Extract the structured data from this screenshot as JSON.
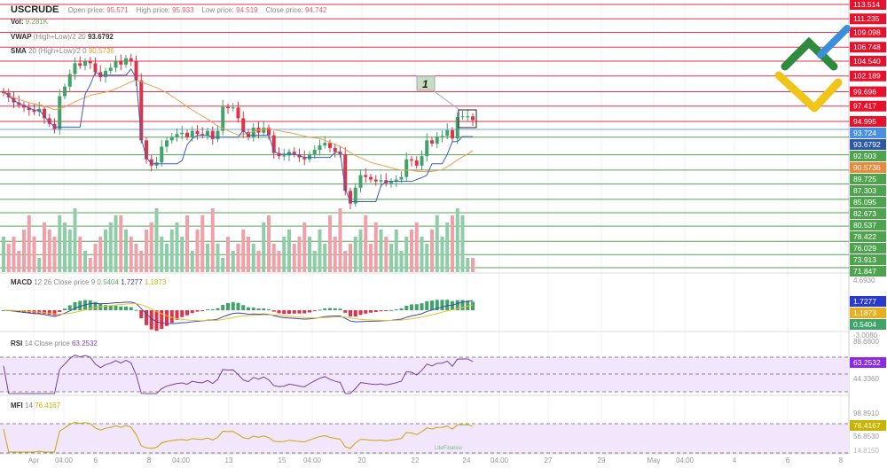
{
  "header": {
    "symbol": "USCRUDE",
    "open_label": "Open price:",
    "open": "95.571",
    "high_label": "High price:",
    "high": "95.933",
    "low_label": "Low price:",
    "low": "94.519",
    "close_label": "Close price:",
    "close": "94.742"
  },
  "legends": {
    "vol": {
      "name": "Vol:",
      "value": "9.281K"
    },
    "vwap": {
      "name": "VWAP",
      "params": "(High+Low)/2 20",
      "value": "93.6792"
    },
    "sma": {
      "name": "SMA",
      "params": "20 (High+Low)/2 0",
      "value": "90.5736"
    },
    "macd": {
      "name": "MACD",
      "params": "12 26 Close price 9",
      "v1": "0.5404",
      "v2": "1.7277",
      "v3": "1.1873"
    },
    "rsi": {
      "name": "RSI",
      "params": "14 Close price",
      "value": "63.2532"
    },
    "mfi": {
      "name": "MFI",
      "params": "14",
      "value": "76.4167"
    }
  },
  "annotation": {
    "label": "1"
  },
  "colors": {
    "up": "#3fa36a",
    "down": "#e0334a",
    "resistance": "#e0334a",
    "support": "#5aa05a",
    "vwap": "#3a5fbf",
    "sma": "#e8a050",
    "rsi": "#7a3fa8",
    "mfi": "#c8a800"
  },
  "chart_data": {
    "type": "candlestick",
    "symbol": "USCRUDE",
    "ylim": [
      71.847,
      113.514
    ],
    "resistance_levels": [
      "113.514",
      "111.235",
      "109.098",
      "106.748",
      "104.540",
      "102.189",
      "99.696",
      "97.417",
      "94.995"
    ],
    "current_level": "93.724",
    "support_levels": [
      "92.503",
      "89.725",
      "87.303",
      "85.095",
      "82.673",
      "80.537",
      "78.422",
      "76.029",
      "73.913",
      "71.847"
    ],
    "vwap_label": "93.6792",
    "sma_label": "90.5736",
    "macd_axis": [
      "4.6930",
      "1.7277",
      "1.1873",
      "0.5404",
      "-3.0080"
    ],
    "rsi_axis": [
      "88.6800",
      "63.2532",
      "44.3360"
    ],
    "mfi_axis": [
      "98.8910",
      "76.4167",
      "56.8530",
      "14.8150"
    ],
    "x_ticks": [
      "Apr",
      "04:00",
      "6",
      "8",
      "04:00",
      "13",
      "15",
      "04:00",
      "20",
      "22",
      "24",
      "04:00",
      "27",
      "29",
      "May",
      "04:00",
      "4",
      "6",
      "8"
    ],
    "close": [
      99.5,
      98.8,
      98.0,
      97.6,
      97.2,
      96.8,
      96.5,
      97.0,
      95.5,
      94.6,
      93.8,
      99.0,
      100.5,
      102.5,
      104.2,
      103.8,
      104.5,
      104.2,
      102.8,
      102.0,
      103.0,
      103.5,
      104.5,
      104.0,
      105.0,
      104.5,
      101.5,
      92.0,
      89.0,
      88.0,
      88.5,
      91.0,
      92.0,
      92.5,
      93.0,
      93.2,
      92.5,
      93.5,
      93.0,
      92.8,
      93.5,
      92.2,
      93.5,
      97.3,
      97.1,
      97.2,
      95.5,
      93.3,
      92.5,
      94.0,
      93.2,
      94.0,
      92.8,
      90.0,
      89.5,
      89.6,
      90.2,
      89.8,
      89.3,
      89.0,
      89.8,
      90.5,
      91.2,
      91.6,
      90.8,
      90.2,
      89.8,
      84.0,
      82.0,
      84.5,
      86.5,
      86.2,
      85.8,
      85.5,
      85.7,
      85.2,
      85.5,
      85.8,
      86.2,
      89.0,
      88.8,
      88.0,
      89.5,
      92.0,
      91.5,
      92.6,
      92.7,
      93.6,
      92.3,
      95.7,
      95.8,
      95.8,
      95.2
    ],
    "volume": [
      5,
      4,
      5,
      3,
      6,
      8,
      5,
      2,
      7,
      6,
      5,
      8,
      7,
      6,
      9,
      5,
      3,
      2,
      4,
      5,
      6,
      7,
      8,
      8,
      6,
      5,
      4,
      3,
      6,
      7,
      9,
      5,
      4,
      6,
      7,
      5,
      8,
      3,
      6,
      8,
      4,
      9,
      4,
      2,
      5,
      3,
      4,
      6,
      5,
      4,
      3,
      7,
      8,
      4,
      3,
      5,
      6,
      4,
      5,
      7,
      5,
      3,
      6,
      4,
      8,
      5,
      9,
      3,
      4,
      5,
      6,
      8,
      4,
      7,
      6,
      5,
      4,
      6,
      3,
      5,
      6,
      7,
      5,
      4,
      6,
      8,
      5,
      7,
      8,
      9,
      8,
      2,
      2
    ]
  },
  "watermark": "LiteFinance"
}
